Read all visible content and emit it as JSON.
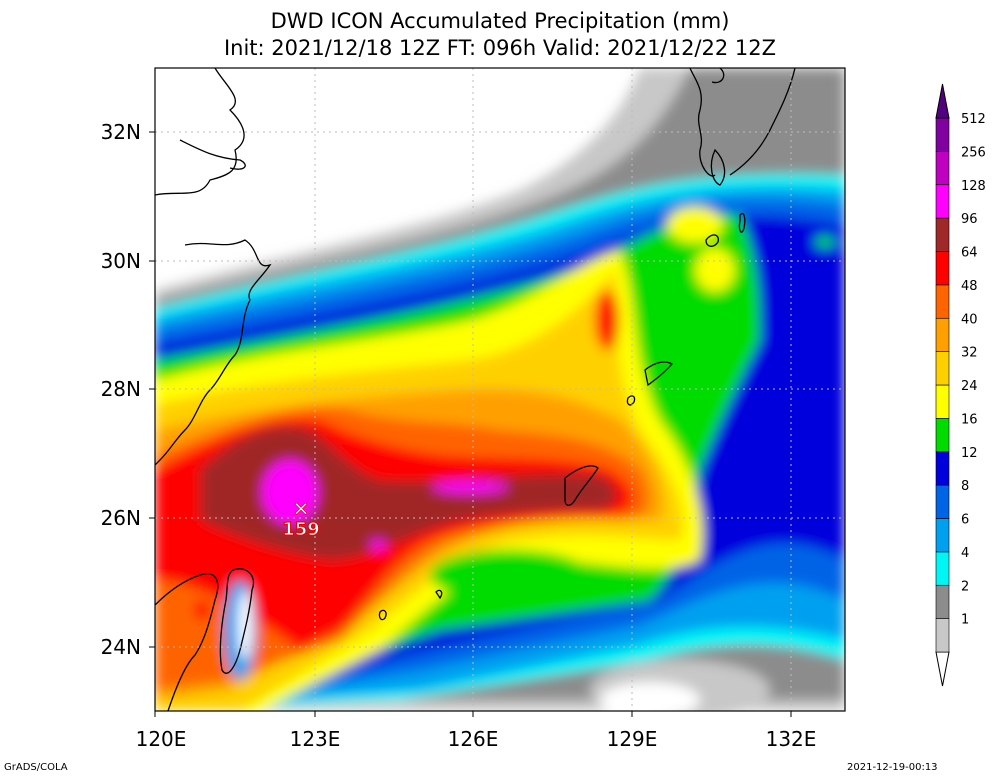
{
  "title_line1": "DWD ICON Accumulated Precipitation (mm)",
  "title_line2": "Init: 2021/12/18 12Z  FT: 096h  Valid: 2021/12/22 12Z",
  "lon_labels": [
    "120E",
    "123E",
    "126E",
    "129E",
    "132E"
  ],
  "lat_labels": [
    "32N",
    "30N",
    "28N",
    "26N",
    "24N"
  ],
  "max_marker": {
    "symbol": "✕",
    "value": "159"
  },
  "colorbar": {
    "labels": [
      "512",
      "256",
      "128",
      "96",
      "64",
      "48",
      "40",
      "32",
      "24",
      "16",
      "12",
      "8",
      "6",
      "4",
      "2",
      "1"
    ],
    "colors": [
      "#ffffff",
      "#c8c8c8",
      "#8c8c8c",
      "#00f5f5",
      "#00a0f0",
      "#0064e6",
      "#0000dc",
      "#00dc00",
      "#ffff00",
      "#ffd000",
      "#ffa000",
      "#ff6400",
      "#ff0000",
      "#a02828",
      "#ff00ff",
      "#c000c0",
      "#8000a0",
      "#500080"
    ]
  },
  "footer_left": "GrADS/COLA",
  "footer_right": "2021-12-19-00:13"
}
